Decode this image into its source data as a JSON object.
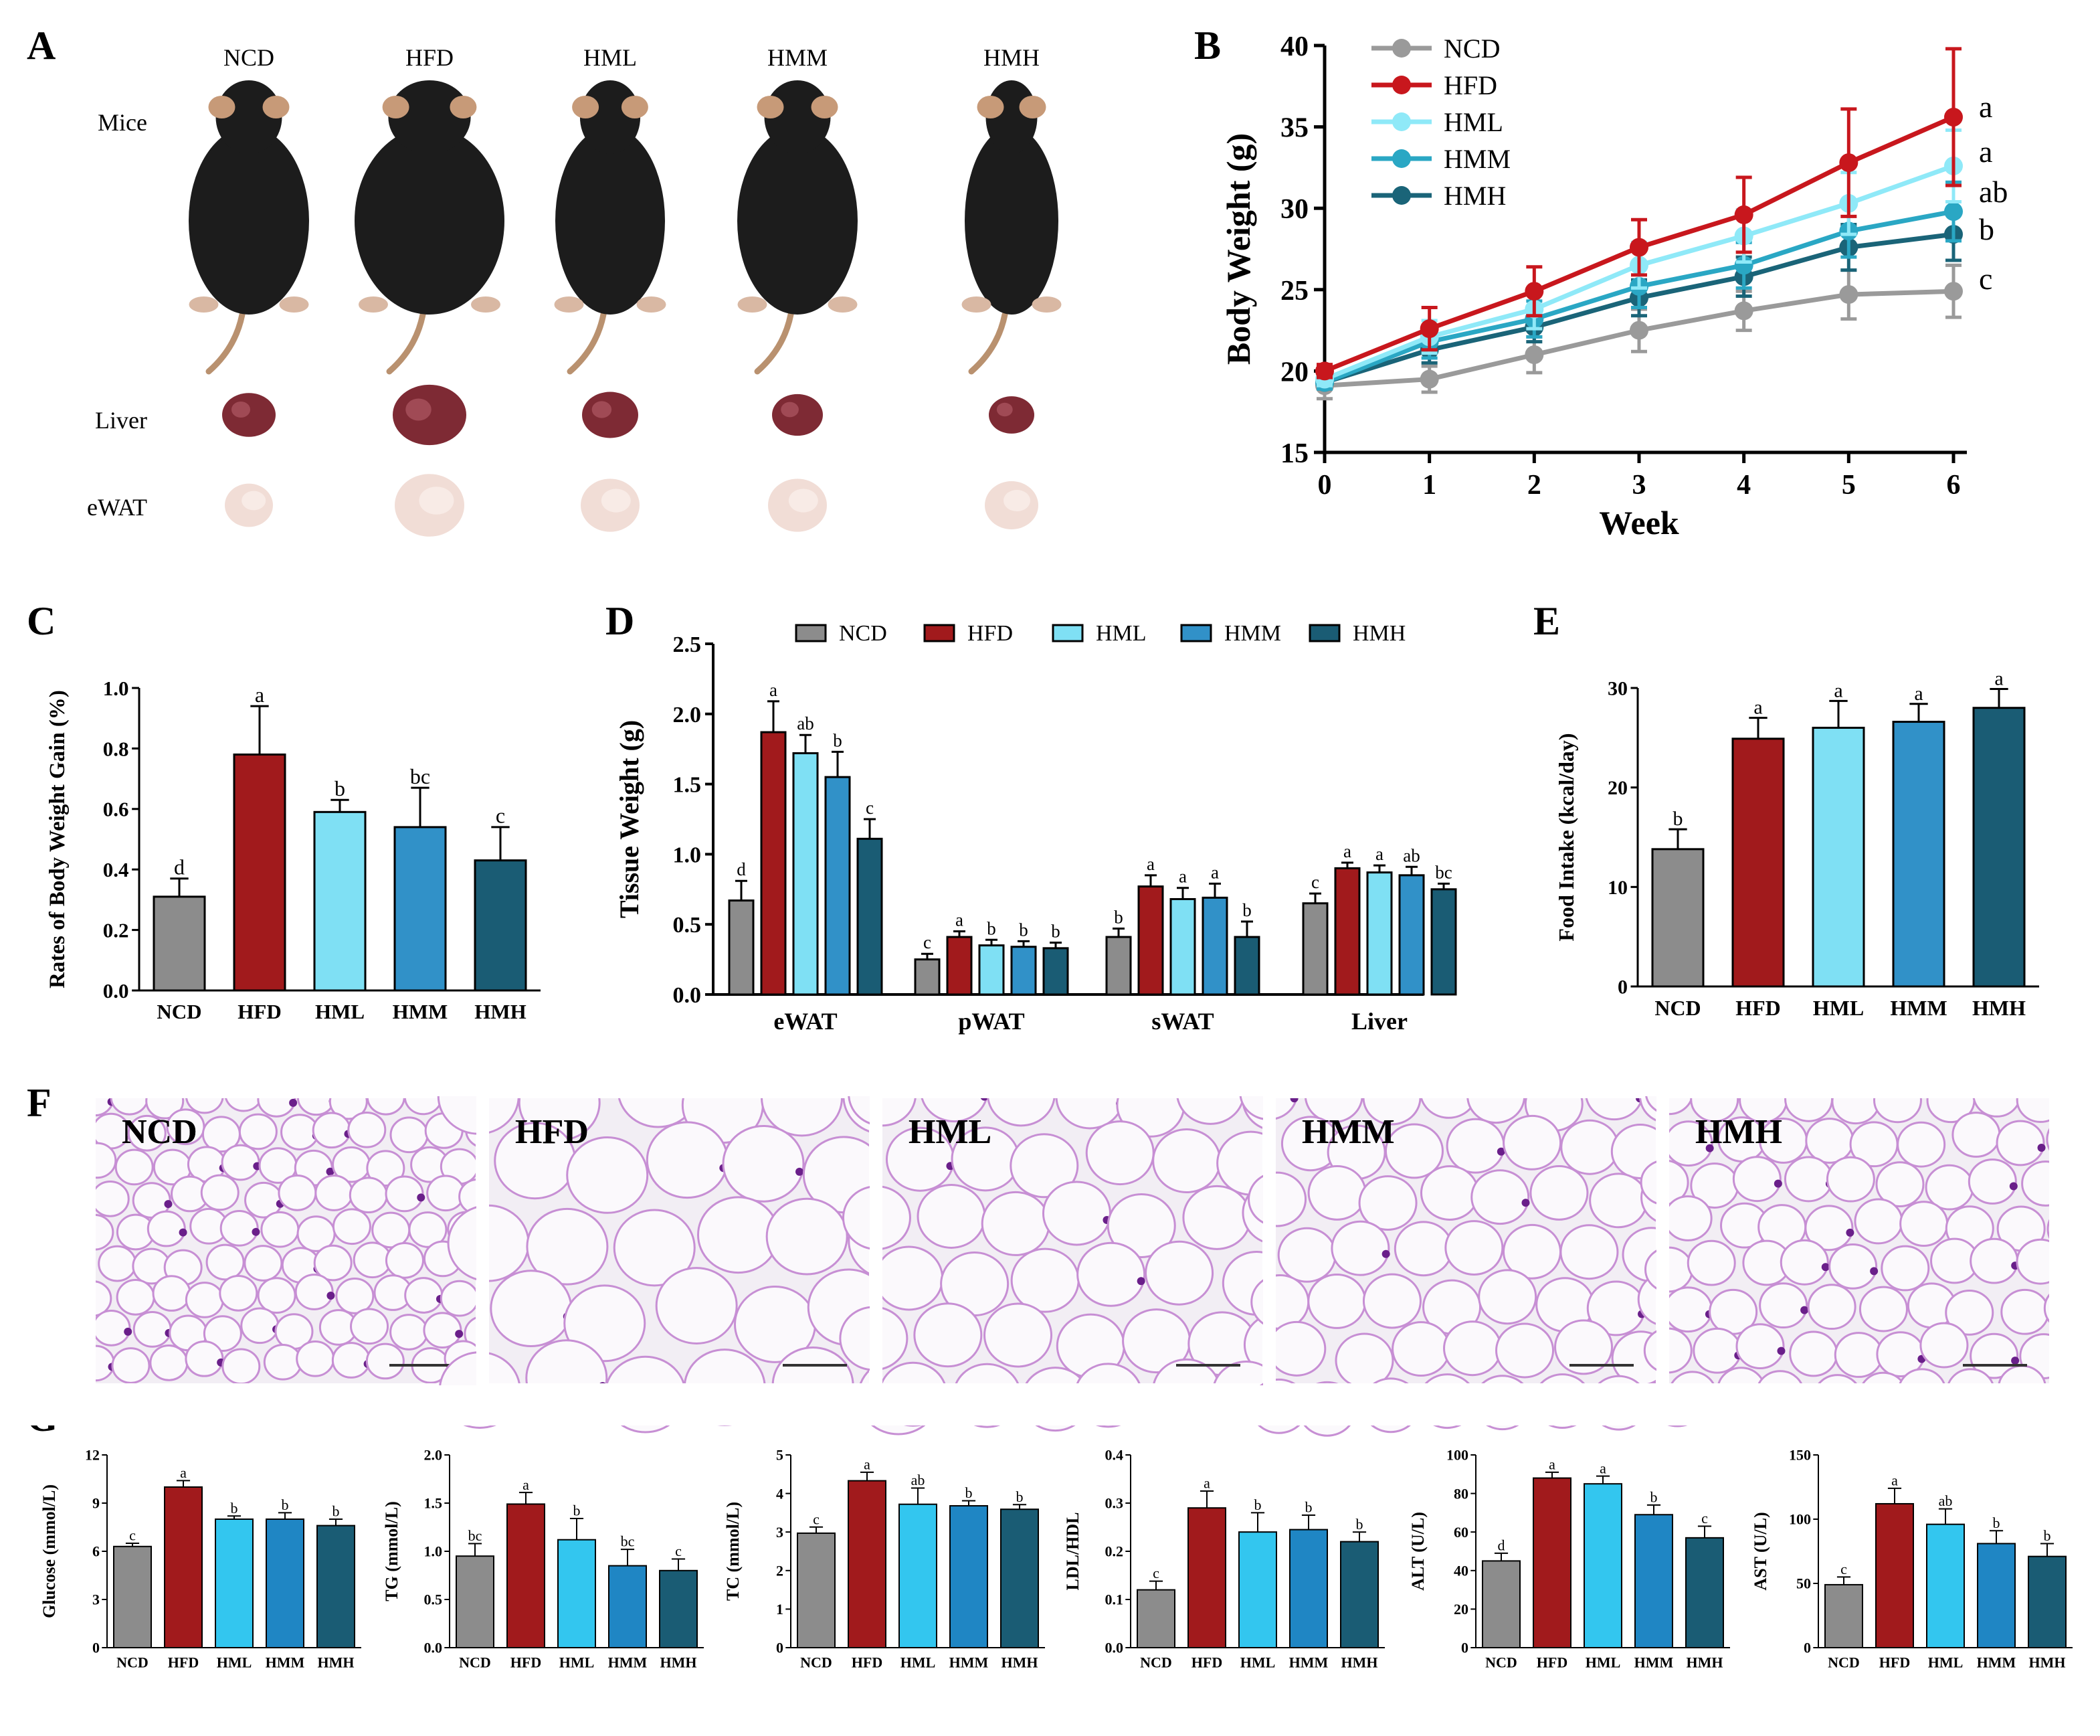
{
  "colors": {
    "NCD": "#8c8c8c",
    "HFD": "#a11a1c",
    "HML": "#7fe0f4",
    "HMM": "#3191c8",
    "HMH": "#1a5c74",
    "HML_G": "#33c6ef",
    "HMM_G": "#1f86c4",
    "lineNCD": "#9a9a9a",
    "lineHFD": "#c8171d",
    "lineHML": "#8fe9f8",
    "lineHMM": "#2aa7c4",
    "lineHMH": "#1a6478"
  },
  "panel_labels": [
    "A",
    "B",
    "C",
    "D",
    "E",
    "F",
    "G"
  ],
  "groups": [
    "NCD",
    "HFD",
    "HML",
    "HMM",
    "HMH"
  ],
  "panelA": {
    "row_labels": [
      "Mice",
      "Liver",
      "eWAT"
    ],
    "col_labels": [
      "NCD",
      "HFD",
      "HML",
      "HMM",
      "HMH"
    ]
  },
  "panelF": {
    "labels": [
      "NCD",
      "HFD",
      "HML",
      "HMM",
      "HMH"
    ]
  },
  "chart_data": [
    {
      "id": "B",
      "type": "line",
      "xlabel": "Week",
      "ylabel": "Body Weight (g)",
      "x": [
        0,
        1,
        2,
        3,
        4,
        5,
        6
      ],
      "ylim": [
        15,
        40
      ],
      "yticks": [
        15,
        20,
        25,
        30,
        35,
        40
      ],
      "series": [
        {
          "name": "NCD",
          "values": [
            19.1,
            19.5,
            21.0,
            22.5,
            23.7,
            24.7,
            24.9
          ],
          "err": [
            0.8,
            0.8,
            1.1,
            1.3,
            1.2,
            1.5,
            1.6
          ],
          "sig": "c"
        },
        {
          "name": "HFD",
          "values": [
            20.0,
            22.6,
            24.9,
            27.6,
            29.6,
            32.8,
            35.6
          ],
          "err": [
            0.4,
            1.3,
            1.5,
            1.7,
            2.3,
            3.3,
            4.2
          ],
          "sig": "a"
        },
        {
          "name": "HML",
          "values": [
            19.5,
            22.1,
            23.8,
            26.5,
            28.3,
            30.3,
            32.6
          ],
          "err": [
            0.4,
            1.0,
            1.2,
            1.4,
            1.6,
            1.9,
            2.2
          ],
          "sig": "a"
        },
        {
          "name": "HMM",
          "values": [
            19.3,
            21.8,
            23.2,
            25.2,
            26.5,
            28.6,
            29.8
          ],
          "err": [
            0.4,
            1.0,
            1.1,
            1.3,
            1.4,
            1.6,
            1.8
          ],
          "sig": "ab"
        },
        {
          "name": "HMH",
          "values": [
            19.3,
            21.3,
            22.7,
            24.5,
            25.8,
            27.6,
            28.4
          ],
          "err": [
            0.4,
            0.8,
            0.9,
            1.1,
            1.2,
            1.4,
            1.6
          ],
          "sig": "b"
        }
      ]
    },
    {
      "id": "C",
      "type": "bar",
      "ylabel": "Rates of Body Weight Gain (%)",
      "categories": [
        "NCD",
        "HFD",
        "HML",
        "HMM",
        "HMH"
      ],
      "values": [
        0.31,
        0.78,
        0.59,
        0.54,
        0.43
      ],
      "err": [
        0.06,
        0.16,
        0.04,
        0.13,
        0.11
      ],
      "sig": [
        "d",
        "a",
        "b",
        "bc",
        "c"
      ],
      "ylim": [
        0,
        1.0
      ],
      "yticks": [
        0.0,
        0.2,
        0.4,
        0.6,
        0.8,
        1.0
      ]
    },
    {
      "id": "D",
      "type": "bar",
      "ylabel": "Tissue Weight (g)",
      "categories": [
        "eWAT",
        "pWAT",
        "sWAT",
        "Liver"
      ],
      "ylim": [
        0,
        2.5
      ],
      "yticks": [
        0.0,
        0.5,
        1.0,
        1.5,
        2.0,
        2.5
      ],
      "series": [
        {
          "name": "NCD",
          "values": [
            0.67,
            0.25,
            0.41,
            0.65
          ],
          "err": [
            0.14,
            0.04,
            0.06,
            0.07
          ],
          "sig": [
            "d",
            "c",
            "b",
            "c"
          ]
        },
        {
          "name": "HFD",
          "values": [
            1.87,
            0.41,
            0.77,
            0.9
          ],
          "err": [
            0.22,
            0.04,
            0.08,
            0.04
          ],
          "sig": [
            "a",
            "a",
            "a",
            "a"
          ]
        },
        {
          "name": "HML",
          "values": [
            1.72,
            0.35,
            0.68,
            0.87
          ],
          "err": [
            0.13,
            0.04,
            0.08,
            0.05
          ],
          "sig": [
            "ab",
            "b",
            "a",
            "a"
          ]
        },
        {
          "name": "HMM",
          "values": [
            1.55,
            0.34,
            0.69,
            0.85
          ],
          "err": [
            0.18,
            0.04,
            0.1,
            0.06
          ],
          "sig": [
            "b",
            "b",
            "a",
            "ab"
          ]
        },
        {
          "name": "HMH",
          "values": [
            1.11,
            0.33,
            0.41,
            0.75
          ],
          "err": [
            0.14,
            0.04,
            0.11,
            0.04
          ],
          "sig": [
            "c",
            "b",
            "b",
            "bc"
          ]
        }
      ]
    },
    {
      "id": "E",
      "type": "bar",
      "ylabel": "Food Intake (kcal/day)",
      "categories": [
        "NCD",
        "HFD",
        "HML",
        "HMM",
        "HMH"
      ],
      "values": [
        13.8,
        24.9,
        26.0,
        26.6,
        28.0
      ],
      "err": [
        2.0,
        2.1,
        2.7,
        1.8,
        1.9
      ],
      "sig": [
        "b",
        "a",
        "a",
        "a",
        "a"
      ],
      "ylim": [
        0,
        30
      ],
      "yticks": [
        0,
        10,
        20,
        30
      ]
    },
    {
      "id": "G1",
      "type": "bar",
      "ylabel": "Glucose (mmol/L)",
      "categories": [
        "NCD",
        "HFD",
        "HML",
        "HMM",
        "HMH"
      ],
      "values": [
        6.3,
        10.0,
        8.0,
        8.0,
        7.6
      ],
      "err": [
        0.2,
        0.4,
        0.2,
        0.4,
        0.4
      ],
      "sig": [
        "c",
        "a",
        "b",
        "b",
        "b"
      ],
      "ylim": [
        0,
        12
      ],
      "yticks": [
        0,
        3,
        6,
        9,
        12
      ]
    },
    {
      "id": "G2",
      "type": "bar",
      "ylabel": "TG (mmol/L)",
      "categories": [
        "NCD",
        "HFD",
        "HML",
        "HMM",
        "HMH"
      ],
      "values": [
        0.95,
        1.49,
        1.12,
        0.85,
        0.8
      ],
      "err": [
        0.13,
        0.12,
        0.22,
        0.17,
        0.12
      ],
      "sig": [
        "bc",
        "a",
        "b",
        "bc",
        "c"
      ],
      "ylim": [
        0,
        2.0
      ],
      "yticks": [
        0.0,
        0.5,
        1.0,
        1.5,
        2.0
      ]
    },
    {
      "id": "G3",
      "type": "bar",
      "ylabel": "TC (mmol/L)",
      "categories": [
        "NCD",
        "HFD",
        "HML",
        "HMM",
        "HMH"
      ],
      "values": [
        2.97,
        4.33,
        3.72,
        3.68,
        3.59
      ],
      "err": [
        0.16,
        0.22,
        0.42,
        0.13,
        0.12
      ],
      "sig": [
        "c",
        "a",
        "ab",
        "b",
        "b"
      ],
      "ylim": [
        0,
        5
      ],
      "yticks": [
        0,
        1,
        2,
        3,
        4,
        5
      ]
    },
    {
      "id": "G4",
      "type": "bar",
      "ylabel": "LDL/HDL",
      "categories": [
        "NCD",
        "HFD",
        "HML",
        "HMM",
        "HMH"
      ],
      "values": [
        0.12,
        0.29,
        0.24,
        0.245,
        0.22
      ],
      "err": [
        0.018,
        0.035,
        0.04,
        0.03,
        0.02
      ],
      "sig": [
        "c",
        "a",
        "b",
        "b",
        "b"
      ],
      "ylim": [
        0,
        0.4
      ],
      "yticks": [
        0.0,
        0.1,
        0.2,
        0.3,
        0.4
      ]
    },
    {
      "id": "G5",
      "type": "bar",
      "ylabel": "ALT (U/L)",
      "categories": [
        "NCD",
        "HFD",
        "HML",
        "HMM",
        "HMH"
      ],
      "values": [
        45,
        88,
        85,
        69,
        57
      ],
      "err": [
        4,
        3,
        4,
        5,
        6
      ],
      "sig": [
        "d",
        "a",
        "a",
        "b",
        "c"
      ],
      "ylim": [
        0,
        100
      ],
      "yticks": [
        0,
        20,
        40,
        60,
        80,
        100
      ]
    },
    {
      "id": "G6",
      "type": "bar",
      "ylabel": "AST (U/L)",
      "categories": [
        "NCD",
        "HFD",
        "HML",
        "HMM",
        "HMH"
      ],
      "values": [
        49,
        112,
        96,
        81,
        71
      ],
      "err": [
        6,
        12,
        12,
        10,
        10
      ],
      "sig": [
        "c",
        "a",
        "ab",
        "b",
        "b"
      ],
      "ylim": [
        0,
        150
      ],
      "yticks": [
        0,
        50,
        100,
        150
      ]
    }
  ]
}
